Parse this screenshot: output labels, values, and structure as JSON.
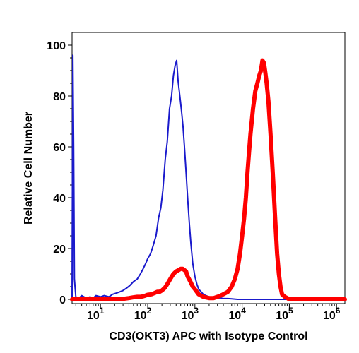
{
  "chart_data": {
    "type": "line",
    "title": "",
    "xlabel": "CD3(OKT3) APC with Isotype Control",
    "ylabel": "Relative Cell Number",
    "x_scale": "log",
    "xlim": [
      2.5,
      1500000
    ],
    "ylim": [
      0,
      100
    ],
    "grid": false,
    "y_ticks": [
      0,
      20,
      40,
      60,
      80,
      100
    ],
    "y_tick_labels": [
      "0",
      "20",
      "40",
      "60",
      "80",
      "100"
    ],
    "x_ticks": [
      10,
      100,
      1000,
      10000,
      100000,
      1000000
    ],
    "x_tick_labels": [
      {
        "base": "10",
        "exp": "1"
      },
      {
        "base": "10",
        "exp": "2"
      },
      {
        "base": "10",
        "exp": "3"
      },
      {
        "base": "10",
        "exp": "4"
      },
      {
        "base": "10",
        "exp": "5"
      },
      {
        "base": "10",
        "exp": "6"
      }
    ],
    "series": [
      {
        "color": "#1a1acc",
        "line_width": 2,
        "x": [
          2.5,
          2.6,
          2.7,
          2.8,
          3,
          3.5,
          4,
          5,
          6,
          7,
          8,
          10,
          12,
          15,
          18,
          22,
          26,
          30,
          36,
          42,
          50,
          60,
          70,
          80,
          90,
          100,
          115,
          130,
          150,
          170,
          190,
          210,
          235,
          260,
          290,
          320,
          350,
          380,
          410,
          440,
          480,
          520,
          560,
          600,
          650,
          700,
          760,
          820,
          900,
          1000,
          1100,
          1200,
          1350,
          1500,
          1700,
          2000,
          2500,
          3000,
          3500,
          4000,
          5000,
          6000,
          8000,
          10000,
          20000,
          100000,
          1500000
        ],
        "y": [
          0,
          96,
          60,
          8,
          1,
          0.5,
          1.5,
          0.5,
          1,
          0.5,
          1.5,
          1,
          1.5,
          1,
          2,
          2.5,
          3,
          3.5,
          4.5,
          5.5,
          7,
          8,
          10,
          12,
          14,
          16,
          18,
          21,
          25,
          32,
          36,
          43,
          55,
          62,
          75,
          80,
          88,
          92,
          94,
          86,
          80,
          74,
          68,
          60,
          50,
          40,
          30,
          22,
          14,
          9,
          6,
          4,
          3,
          2,
          1.5,
          1,
          0.8,
          0.5,
          0.6,
          0.3,
          0.3,
          0.2,
          0,
          0,
          0,
          0,
          0
        ]
      },
      {
        "color": "#ff0000",
        "line_width": 6,
        "x": [
          2.5,
          5,
          10,
          20,
          30,
          40,
          50,
          60,
          70,
          80,
          90,
          100,
          120,
          140,
          160,
          180,
          200,
          230,
          260,
          300,
          350,
          400,
          450,
          500,
          550,
          600,
          650,
          700,
          800,
          900,
          1000,
          1200,
          1500,
          2000,
          2500,
          3000,
          3500,
          4000,
          5000,
          6000,
          7000,
          8000,
          9000,
          10000,
          11000,
          12000,
          13000,
          14000,
          15000,
          17000,
          19000,
          21000,
          23000,
          25000,
          27000,
          29000,
          31000,
          33000,
          36000,
          40000,
          45000,
          50000,
          55000,
          60000,
          65000,
          70000,
          80000,
          90000,
          100000,
          150000,
          300000,
          1500000
        ],
        "y": [
          0,
          0,
          0,
          0,
          0.2,
          0.5,
          0.8,
          1,
          1,
          1.2,
          1.5,
          1.8,
          2,
          2.5,
          3,
          3,
          3.5,
          4.5,
          6,
          8,
          10,
          11,
          11.5,
          12,
          12,
          11.5,
          11,
          9,
          7,
          5,
          4,
          2,
          1,
          0.5,
          0.5,
          1,
          1.5,
          2,
          3,
          5,
          8,
          12,
          18,
          25,
          32,
          40,
          50,
          58,
          65,
          75,
          82,
          85,
          88,
          90,
          94,
          93,
          89,
          85,
          78,
          65,
          48,
          32,
          18,
          10,
          5,
          2,
          1,
          0.5,
          0,
          0,
          0,
          0
        ]
      }
    ]
  }
}
